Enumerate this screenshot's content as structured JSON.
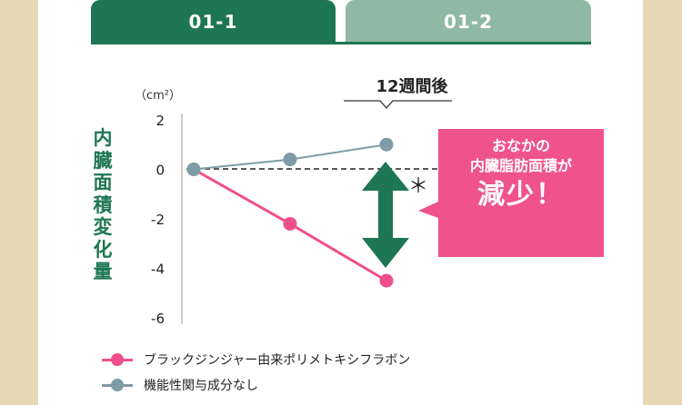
{
  "tabs": [
    {
      "label": "01-1",
      "active": true
    },
    {
      "label": "01-2",
      "active": false
    }
  ],
  "chart_data": {
    "type": "line",
    "unit_label": "（cm²）",
    "ylabel": "内臓面積変化量",
    "ylim": [
      -6,
      2
    ],
    "yticks": [
      "2",
      "0",
      "-2",
      "-4",
      "-6"
    ],
    "x": [
      0,
      1,
      2
    ],
    "annotation": "12週間後",
    "significance_mark": "＊",
    "series": [
      {
        "name": "ブラックジンジャー由来ポリメトキシフラボン",
        "color": "#ee4f8c",
        "values": [
          0,
          -2.2,
          -4.5
        ]
      },
      {
        "name": "機能性関与成分なし",
        "color": "#7d9ca5",
        "values": [
          0,
          0.4,
          1.0
        ]
      }
    ]
  },
  "callout": {
    "line1": "おなかの",
    "line2": "内臓脂肪面積が",
    "line3": "減少！",
    "color": "#f0528b"
  },
  "colors": {
    "brand_green": "#1e7654",
    "tab_inactive": "#8fb9a3",
    "frame": "#e8d7b4"
  }
}
